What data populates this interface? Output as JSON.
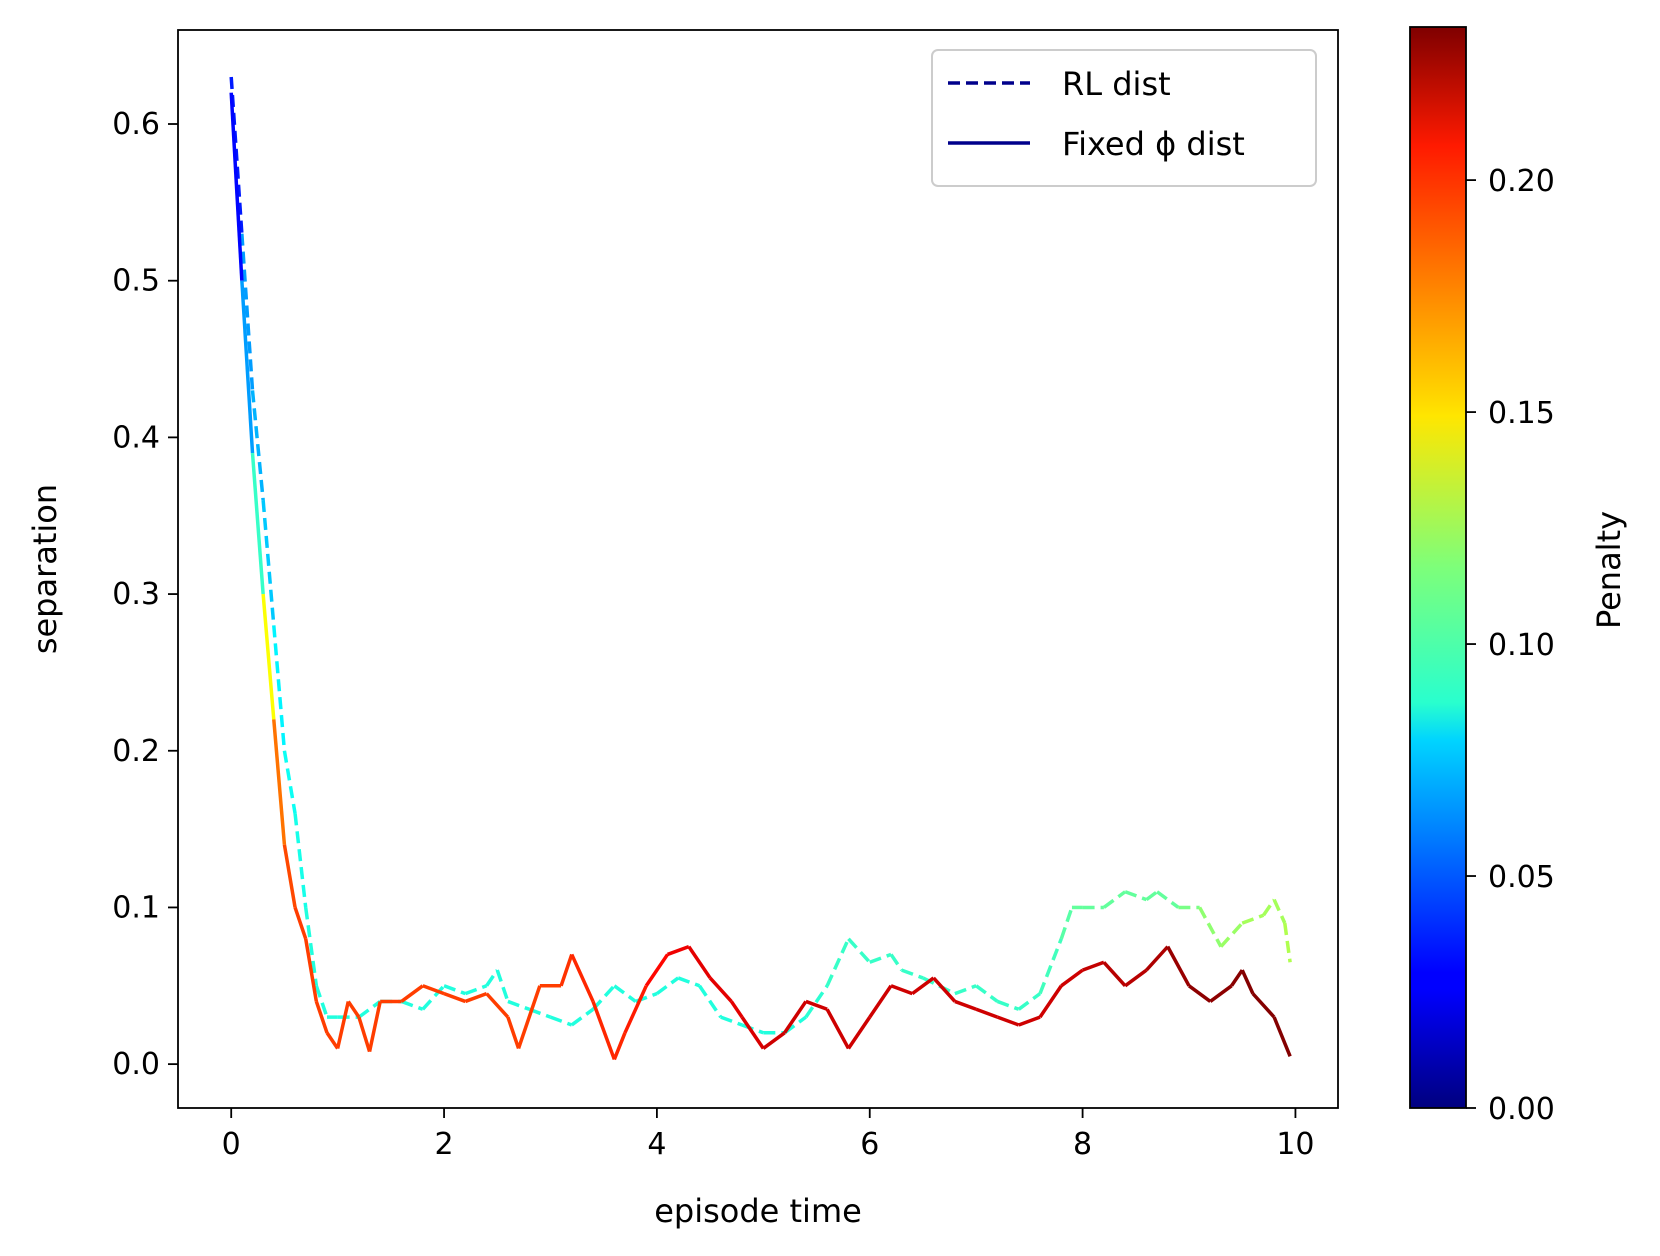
{
  "chart_data": {
    "type": "line",
    "title": "",
    "xlabel": "episode time",
    "ylabel": "separation",
    "xlim": [
      -0.5,
      10.4
    ],
    "ylim": [
      -0.028,
      0.66
    ],
    "x_ticks": [
      0,
      2,
      4,
      6,
      8,
      10
    ],
    "x_tick_labels": [
      "0",
      "2",
      "4",
      "6",
      "8",
      "10"
    ],
    "y_ticks": [
      0.0,
      0.1,
      0.2,
      0.3,
      0.4,
      0.5,
      0.6
    ],
    "y_tick_labels": [
      "0.0",
      "0.1",
      "0.2",
      "0.3",
      "0.4",
      "0.5",
      "0.6"
    ],
    "grid": false,
    "legend_position": "top-right",
    "series": [
      {
        "name": "RL dist",
        "label_text": "RL dist",
        "style": "dashed",
        "legend_color": "#00008b",
        "x": [
          0,
          0.1,
          0.2,
          0.3,
          0.4,
          0.5,
          0.6,
          0.7,
          0.8,
          0.9,
          1.0,
          1.2,
          1.4,
          1.6,
          1.8,
          2.0,
          2.2,
          2.4,
          2.5,
          2.6,
          2.8,
          3.0,
          3.2,
          3.4,
          3.6,
          3.8,
          4.0,
          4.2,
          4.4,
          4.6,
          4.8,
          5.0,
          5.2,
          5.4,
          5.6,
          5.8,
          6.0,
          6.2,
          6.3,
          6.5,
          6.8,
          7.0,
          7.2,
          7.4,
          7.6,
          7.8,
          7.9,
          8.0,
          8.2,
          8.4,
          8.6,
          8.7,
          8.9,
          9.1,
          9.3,
          9.5,
          9.7,
          9.8,
          9.9,
          9.95
        ],
        "y": [
          0.63,
          0.53,
          0.43,
          0.36,
          0.28,
          0.2,
          0.16,
          0.1,
          0.05,
          0.03,
          0.03,
          0.03,
          0.04,
          0.04,
          0.035,
          0.05,
          0.045,
          0.05,
          0.06,
          0.04,
          0.035,
          0.03,
          0.025,
          0.035,
          0.05,
          0.04,
          0.045,
          0.055,
          0.05,
          0.03,
          0.025,
          0.02,
          0.02,
          0.03,
          0.05,
          0.08,
          0.065,
          0.07,
          0.06,
          0.055,
          0.045,
          0.05,
          0.04,
          0.035,
          0.045,
          0.08,
          0.1,
          0.1,
          0.1,
          0.11,
          0.105,
          0.11,
          0.1,
          0.1,
          0.075,
          0.09,
          0.095,
          0.105,
          0.09,
          0.065
        ],
        "penalty": [
          0.01,
          0.06,
          0.07,
          0.07,
          0.08,
          0.09,
          0.09,
          0.095,
          0.095,
          0.095,
          0.095,
          0.095,
          0.095,
          0.095,
          0.095,
          0.095,
          0.095,
          0.095,
          0.095,
          0.095,
          0.095,
          0.095,
          0.095,
          0.095,
          0.095,
          0.095,
          0.095,
          0.095,
          0.095,
          0.095,
          0.095,
          0.095,
          0.095,
          0.095,
          0.1,
          0.1,
          0.1,
          0.1,
          0.1,
          0.1,
          0.1,
          0.1,
          0.1,
          0.1,
          0.1,
          0.105,
          0.11,
          0.11,
          0.11,
          0.11,
          0.11,
          0.11,
          0.11,
          0.12,
          0.12,
          0.125,
          0.125,
          0.125,
          0.125,
          0.13
        ]
      },
      {
        "name": "Fixed φ dist",
        "label_text": "Fixed ϕ dist",
        "style": "solid",
        "legend_color": "#00008b",
        "x": [
          0,
          0.1,
          0.2,
          0.3,
          0.4,
          0.5,
          0.6,
          0.7,
          0.8,
          0.9,
          1.0,
          1.1,
          1.2,
          1.3,
          1.4,
          1.6,
          1.8,
          2.0,
          2.2,
          2.4,
          2.6,
          2.7,
          2.9,
          3.1,
          3.2,
          3.4,
          3.6,
          3.7,
          3.9,
          4.1,
          4.3,
          4.5,
          4.7,
          4.8,
          5.0,
          5.2,
          5.4,
          5.6,
          5.8,
          6.0,
          6.2,
          6.4,
          6.6,
          6.8,
          7.0,
          7.2,
          7.4,
          7.6,
          7.8,
          8.0,
          8.2,
          8.4,
          8.6,
          8.8,
          9.0,
          9.2,
          9.4,
          9.5,
          9.6,
          9.8,
          9.95
        ],
        "y": [
          0.62,
          0.5,
          0.39,
          0.3,
          0.22,
          0.14,
          0.1,
          0.08,
          0.04,
          0.02,
          0.01,
          0.04,
          0.03,
          0.008,
          0.04,
          0.04,
          0.05,
          0.045,
          0.04,
          0.045,
          0.03,
          0.01,
          0.05,
          0.05,
          0.07,
          0.04,
          0.003,
          0.02,
          0.05,
          0.07,
          0.075,
          0.055,
          0.04,
          0.03,
          0.01,
          0.02,
          0.04,
          0.035,
          0.01,
          0.03,
          0.05,
          0.045,
          0.055,
          0.04,
          0.035,
          0.03,
          0.025,
          0.03,
          0.05,
          0.06,
          0.065,
          0.05,
          0.06,
          0.075,
          0.05,
          0.04,
          0.05,
          0.06,
          0.045,
          0.03,
          0.005
        ],
        "penalty": [
          0.01,
          0.05,
          0.08,
          0.12,
          0.17,
          0.185,
          0.19,
          0.19,
          0.19,
          0.19,
          0.19,
          0.19,
          0.19,
          0.19,
          0.19,
          0.19,
          0.19,
          0.19,
          0.19,
          0.19,
          0.19,
          0.19,
          0.19,
          0.19,
          0.195,
          0.195,
          0.195,
          0.195,
          0.2,
          0.205,
          0.21,
          0.21,
          0.21,
          0.21,
          0.215,
          0.215,
          0.215,
          0.215,
          0.215,
          0.215,
          0.215,
          0.215,
          0.215,
          0.215,
          0.215,
          0.215,
          0.215,
          0.215,
          0.215,
          0.215,
          0.22,
          0.22,
          0.22,
          0.225,
          0.23,
          0.23,
          0.23,
          0.232,
          0.232,
          0.232,
          0.232
        ]
      }
    ],
    "colorbar": {
      "label": "Penalty",
      "min": 0.0,
      "max": 0.233,
      "colormap": "jet",
      "ticks": [
        0.0,
        0.05,
        0.1,
        0.15,
        0.2
      ],
      "tick_labels": [
        "0.00",
        "0.05",
        "0.10",
        "0.15",
        "0.20"
      ]
    }
  }
}
